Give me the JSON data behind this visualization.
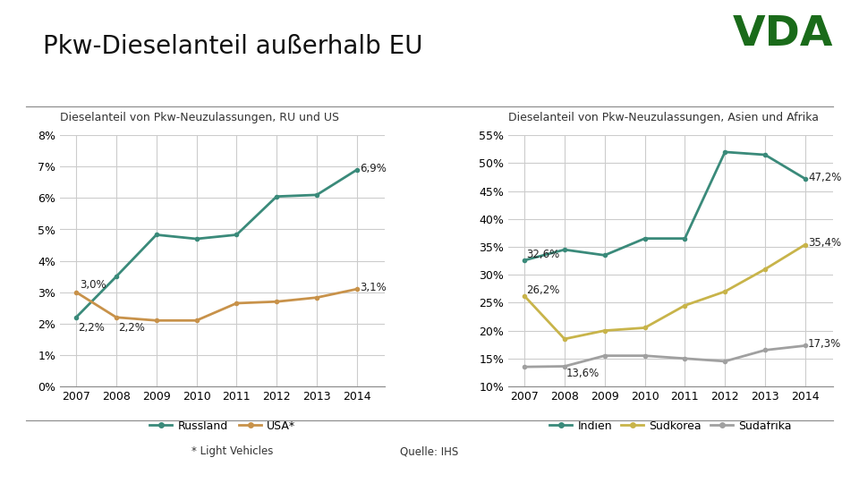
{
  "title": "Pkw-Dieselanteil außerhalb EU",
  "title_fontsize": 20,
  "title_fontweight": "normal",
  "vda_color": "#1a6b1a",
  "background_color": "#ffffff",
  "subtitle_left": "Dieselanteil von Pkw-Neuzulassungen, RU und US",
  "subtitle_right": "Dieselanteil von Pkw-Neuzulassungen, Asien und Afrika",
  "footer_left": "* Light Vehicles",
  "footer_right": "Quelle: IHS",
  "years": [
    2007,
    2008,
    2009,
    2010,
    2011,
    2012,
    2013,
    2014
  ],
  "russland": [
    2.2,
    3.5,
    4.83,
    4.7,
    4.83,
    6.05,
    6.1,
    6.9
  ],
  "usa": [
    3.0,
    2.2,
    2.1,
    2.1,
    2.65,
    2.7,
    2.83,
    3.1
  ],
  "color_russland": "#3a8a7a",
  "color_usa": "#c8924a",
  "indien": [
    32.6,
    34.5,
    33.5,
    36.5,
    36.5,
    52.0,
    51.5,
    47.2
  ],
  "suedkorea": [
    26.2,
    18.5,
    20.0,
    20.5,
    24.5,
    27.0,
    31.0,
    35.4
  ],
  "suedafrika": [
    13.5,
    13.6,
    15.5,
    15.5,
    15.0,
    14.5,
    16.5,
    17.3
  ],
  "color_indien": "#3a8a7a",
  "color_suedkorea": "#c8b44a",
  "color_suedafrika": "#a0a0a0",
  "left_ylim": [
    0,
    8
  ],
  "left_yticks": [
    0,
    1,
    2,
    3,
    4,
    5,
    6,
    7,
    8
  ],
  "right_ylim": [
    10,
    55
  ],
  "right_yticks": [
    10,
    15,
    20,
    25,
    30,
    35,
    40,
    45,
    50,
    55
  ],
  "grid_color": "#cccccc",
  "line_width": 2.0,
  "subtitle_fontsize": 9,
  "tick_fontsize": 9,
  "legend_fontsize": 9,
  "annot_fontsize": 8.5
}
